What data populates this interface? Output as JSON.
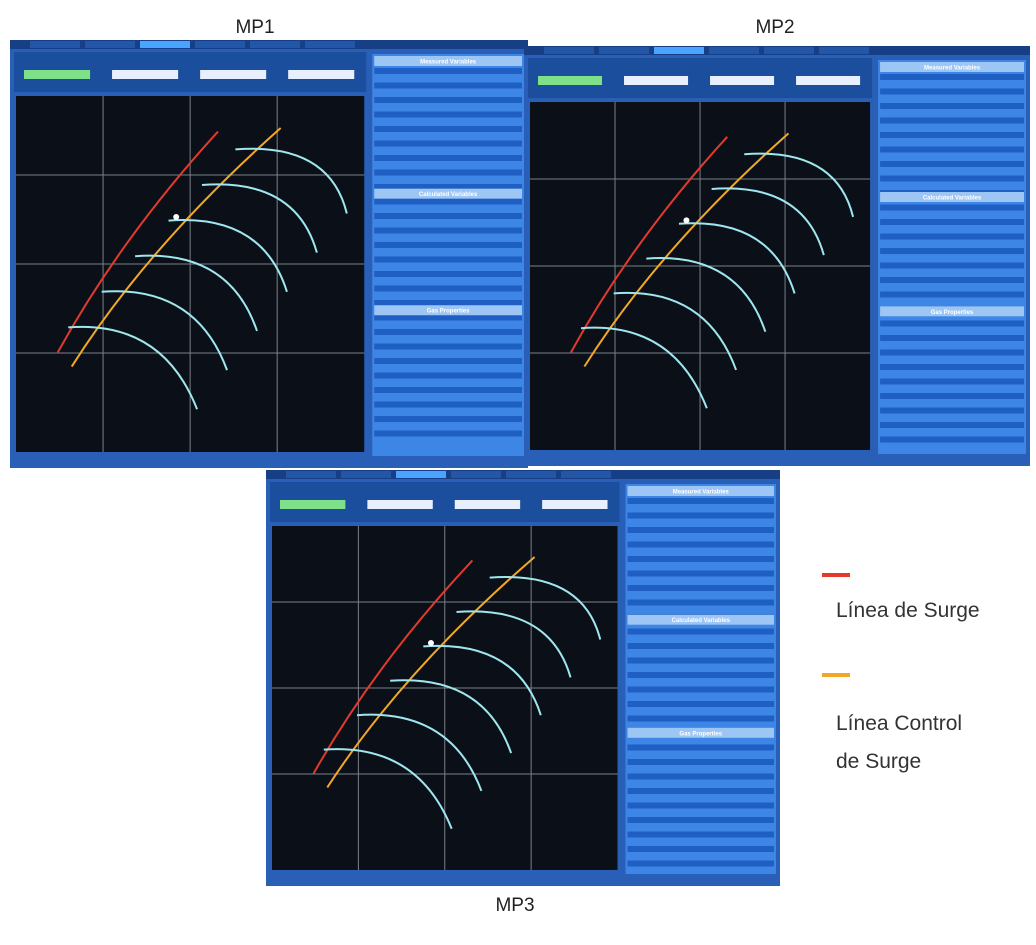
{
  "panels": [
    {
      "label": "MP1",
      "sections": [
        "Measured Variables",
        "Calculated Variables",
        "Gas Properties"
      ]
    },
    {
      "label": "MP2",
      "sections": [
        "Measured Variables",
        "Calculated Variables",
        "Gas Properties"
      ]
    },
    {
      "label": "MP3",
      "sections": [
        "Measured Variables",
        "Calculated Variables",
        "Gas Properties"
      ]
    }
  ],
  "legend": [
    {
      "label": "Línea de Surge",
      "color": "#e23a2c"
    },
    {
      "label": "Línea Control de Surge",
      "color": "#f2a825"
    }
  ]
}
